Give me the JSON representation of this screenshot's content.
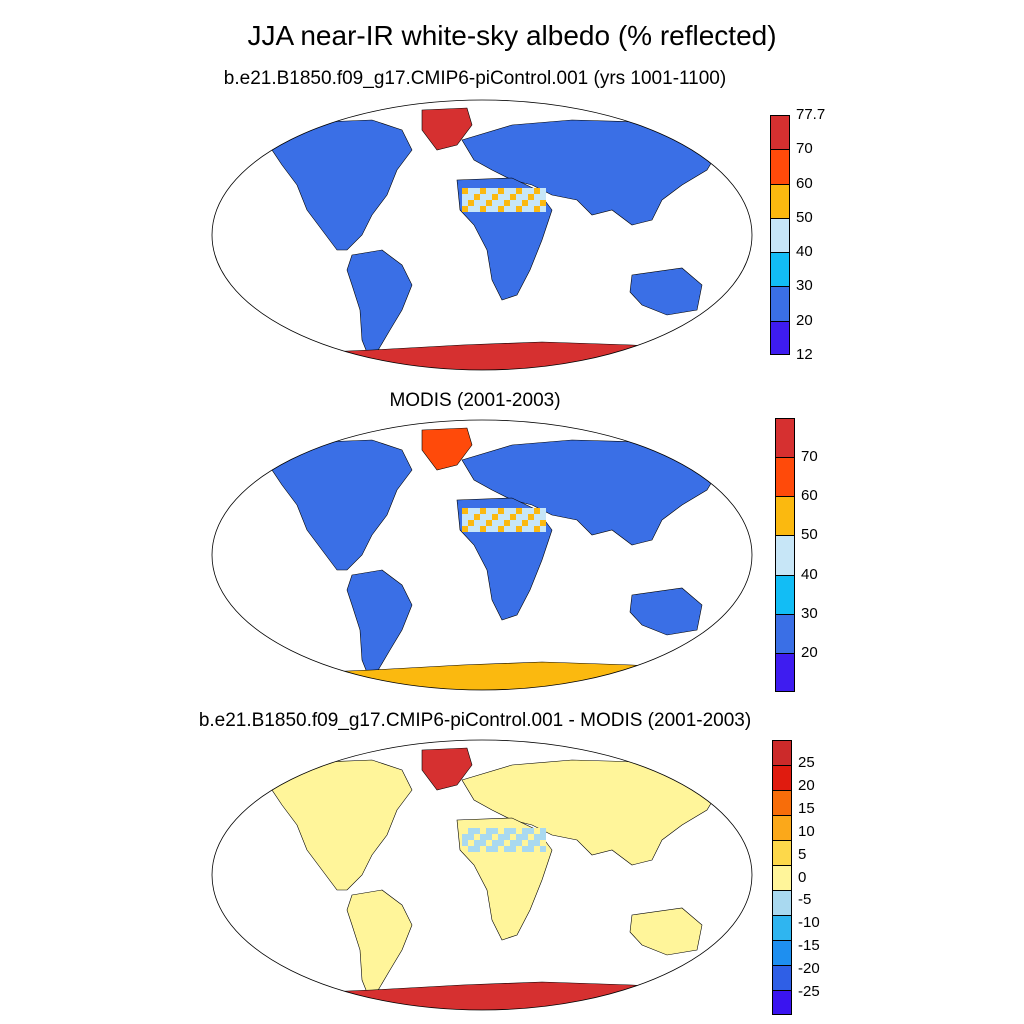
{
  "title": "JJA near-IR white-sky albedo (% reflected)",
  "panels": [
    {
      "subtitle": "b.e21.B1850.f09_g17.CMIP6-piControl.001 (yrs 1001-1100)",
      "colorbar": {
        "colors": [
          "#3e1cf0",
          "#3a6fe6",
          "#12bdf5",
          "#c7e6f7",
          "#fbb90f",
          "#ff4a0a",
          "#d63030"
        ],
        "labels": [
          "12",
          "20",
          "30",
          "40",
          "50",
          "60",
          "70",
          "77.7"
        ]
      },
      "land_color": "#3a6fe6",
      "antarctica_color": "#d63030",
      "greenland_color": "#d63030",
      "sahara_colors": [
        "#c7e6f7",
        "#fbb90f"
      ]
    },
    {
      "subtitle": "MODIS (2001-2003)",
      "colorbar": {
        "colors": [
          "#3e1cf0",
          "#3a6fe6",
          "#12bdf5",
          "#c7e6f7",
          "#fbb90f",
          "#ff4a0a",
          "#d63030"
        ],
        "labels": [
          "",
          "20",
          "30",
          "40",
          "50",
          "60",
          "70",
          ""
        ]
      },
      "land_color": "#3a6fe6",
      "antarctica_color": "#fbb90f",
      "greenland_color": "#ff4a0a",
      "sahara_colors": [
        "#c7e6f7",
        "#fbb90f"
      ]
    },
    {
      "subtitle": "b.e21.B1850.f09_g17.CMIP6-piControl.001 - MODIS (2001-2003)",
      "colorbar": {
        "colors": [
          "#3a14f0",
          "#2f5fe6",
          "#1e8ff0",
          "#2fb5f0",
          "#a9d9f0",
          "#fff59a",
          "#fdd84a",
          "#fba81a",
          "#f76d0a",
          "#e01b0f",
          "#cc2a2a"
        ],
        "labels": [
          "",
          "-25",
          "-20",
          "-15",
          "-10",
          "-5",
          "0",
          "5",
          "10",
          "15",
          "20",
          "25",
          ""
        ]
      },
      "land_color": "#fff59a",
      "antarctica_color": "#d63030",
      "greenland_color": "#d63030",
      "sahara_colors": [
        "#a9d9f0",
        "#fff59a"
      ]
    }
  ]
}
